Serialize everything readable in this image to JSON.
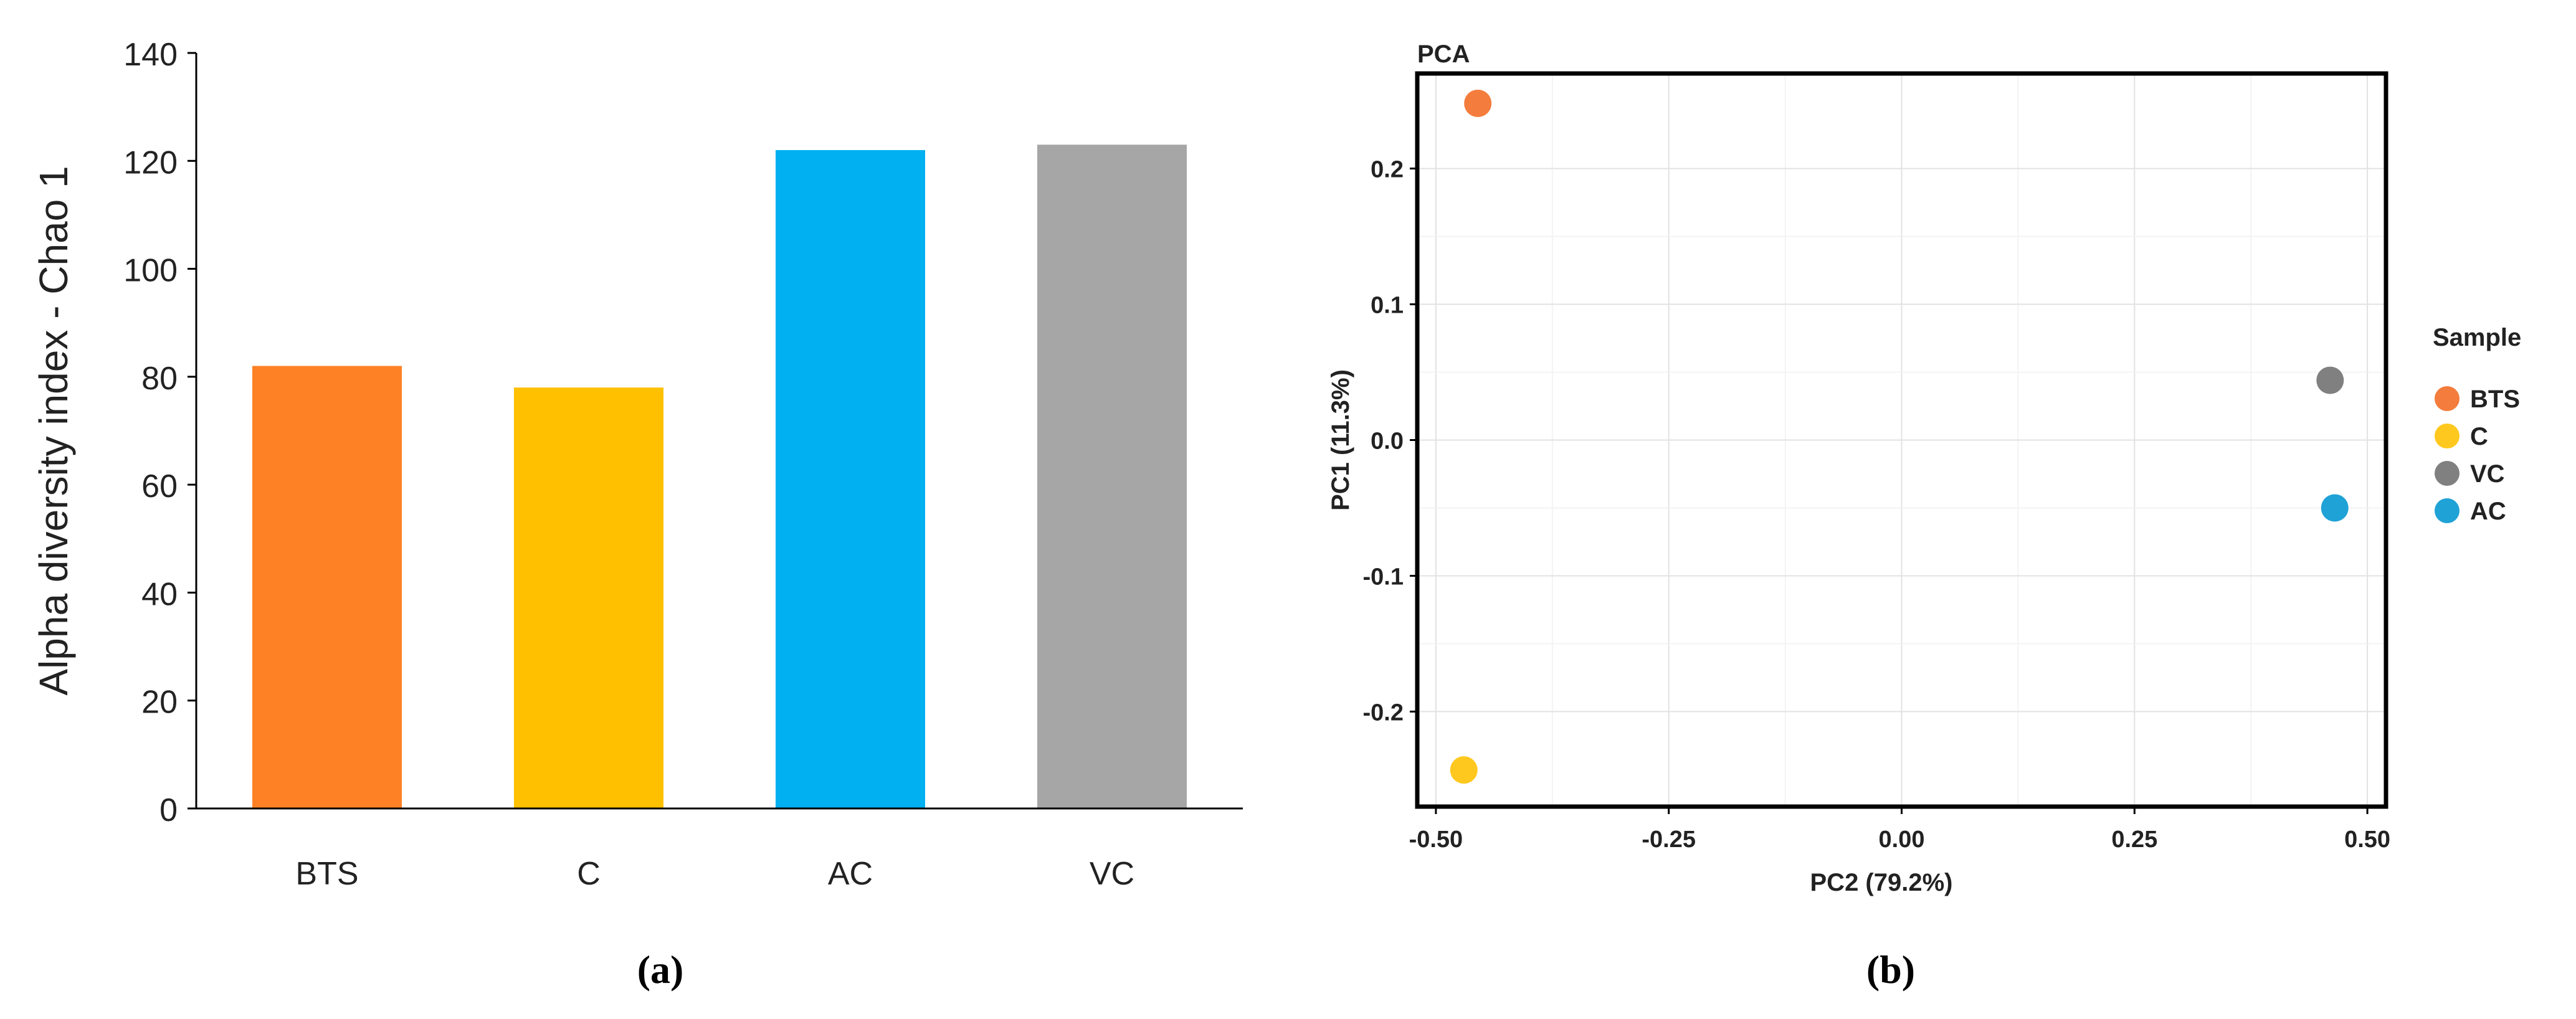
{
  "chart_data": [
    {
      "type": "bar",
      "panel_label": "(a)",
      "ylabel": "Alpha diversity index - Chao 1",
      "categories": [
        "BTS",
        "C",
        "AC",
        "VC"
      ],
      "values": [
        82,
        78,
        122,
        123
      ],
      "colors": [
        "#FF8126",
        "#FFC000",
        "#00B0F0",
        "#A6A6A6"
      ],
      "ylim": [
        0,
        140
      ],
      "yticks": [
        0,
        20,
        40,
        60,
        80,
        100,
        120,
        140
      ],
      "grid": false
    },
    {
      "type": "scatter",
      "panel_label": "(b)",
      "title": "PCA",
      "xlabel": "PC2 (79.2%)",
      "ylabel": "PC1 (11.3%)",
      "xlim": [
        -0.52,
        0.52
      ],
      "ylim": [
        -0.27,
        0.27
      ],
      "xticks": [
        -0.5,
        -0.25,
        0.0,
        0.25,
        0.5
      ],
      "xtick_labels": [
        "-0.50",
        "-0.25",
        "0.00",
        "0.25",
        "0.50"
      ],
      "yticks": [
        0.2,
        0.1,
        0.0,
        -0.1,
        -0.2
      ],
      "ytick_labels": [
        "0.2",
        "0.1",
        "0.0",
        "-0.1",
        "-0.2"
      ],
      "grid": true,
      "legend_title": "Sample",
      "legend_position": "right",
      "points": [
        {
          "name": "BTS",
          "x": -0.455,
          "y": 0.248,
          "color": "#F47C3C"
        },
        {
          "name": "C",
          "x": -0.47,
          "y": -0.243,
          "color": "#FFC81E"
        },
        {
          "name": "VC",
          "x": 0.46,
          "y": 0.044,
          "color": "#808080"
        },
        {
          "name": "AC",
          "x": 0.465,
          "y": -0.05,
          "color": "#1FA2D6"
        }
      ]
    }
  ]
}
